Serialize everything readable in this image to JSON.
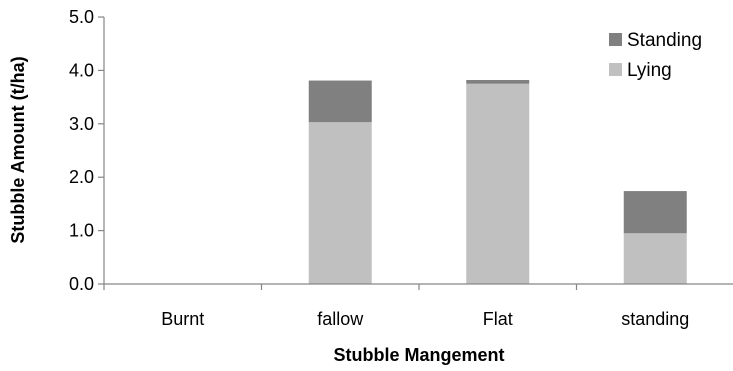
{
  "chart_data": {
    "type": "bar",
    "stacked": true,
    "title": "",
    "xlabel": "Stubble Mangement",
    "ylabel": "Stubble Amount (t/ha)",
    "categories": [
      "Burnt",
      "fallow",
      "Flat",
      "standing"
    ],
    "ylim": [
      0,
      5
    ],
    "yticks": [
      0,
      1,
      2,
      3,
      4,
      5
    ],
    "ytick_labels": [
      "0.0",
      "1.0",
      "2.0",
      "3.0",
      "4.0",
      "5.0"
    ],
    "grid": false,
    "legend_position": "top-right",
    "legend_order": [
      "Standing",
      "Lying"
    ],
    "series": [
      {
        "name": "Lying",
        "color": "#c0c0c0",
        "values": [
          0,
          3.03,
          3.75,
          0.95
        ]
      },
      {
        "name": "Standing",
        "color": "#808080",
        "values": [
          0,
          0.78,
          0.07,
          0.79
        ]
      }
    ]
  }
}
